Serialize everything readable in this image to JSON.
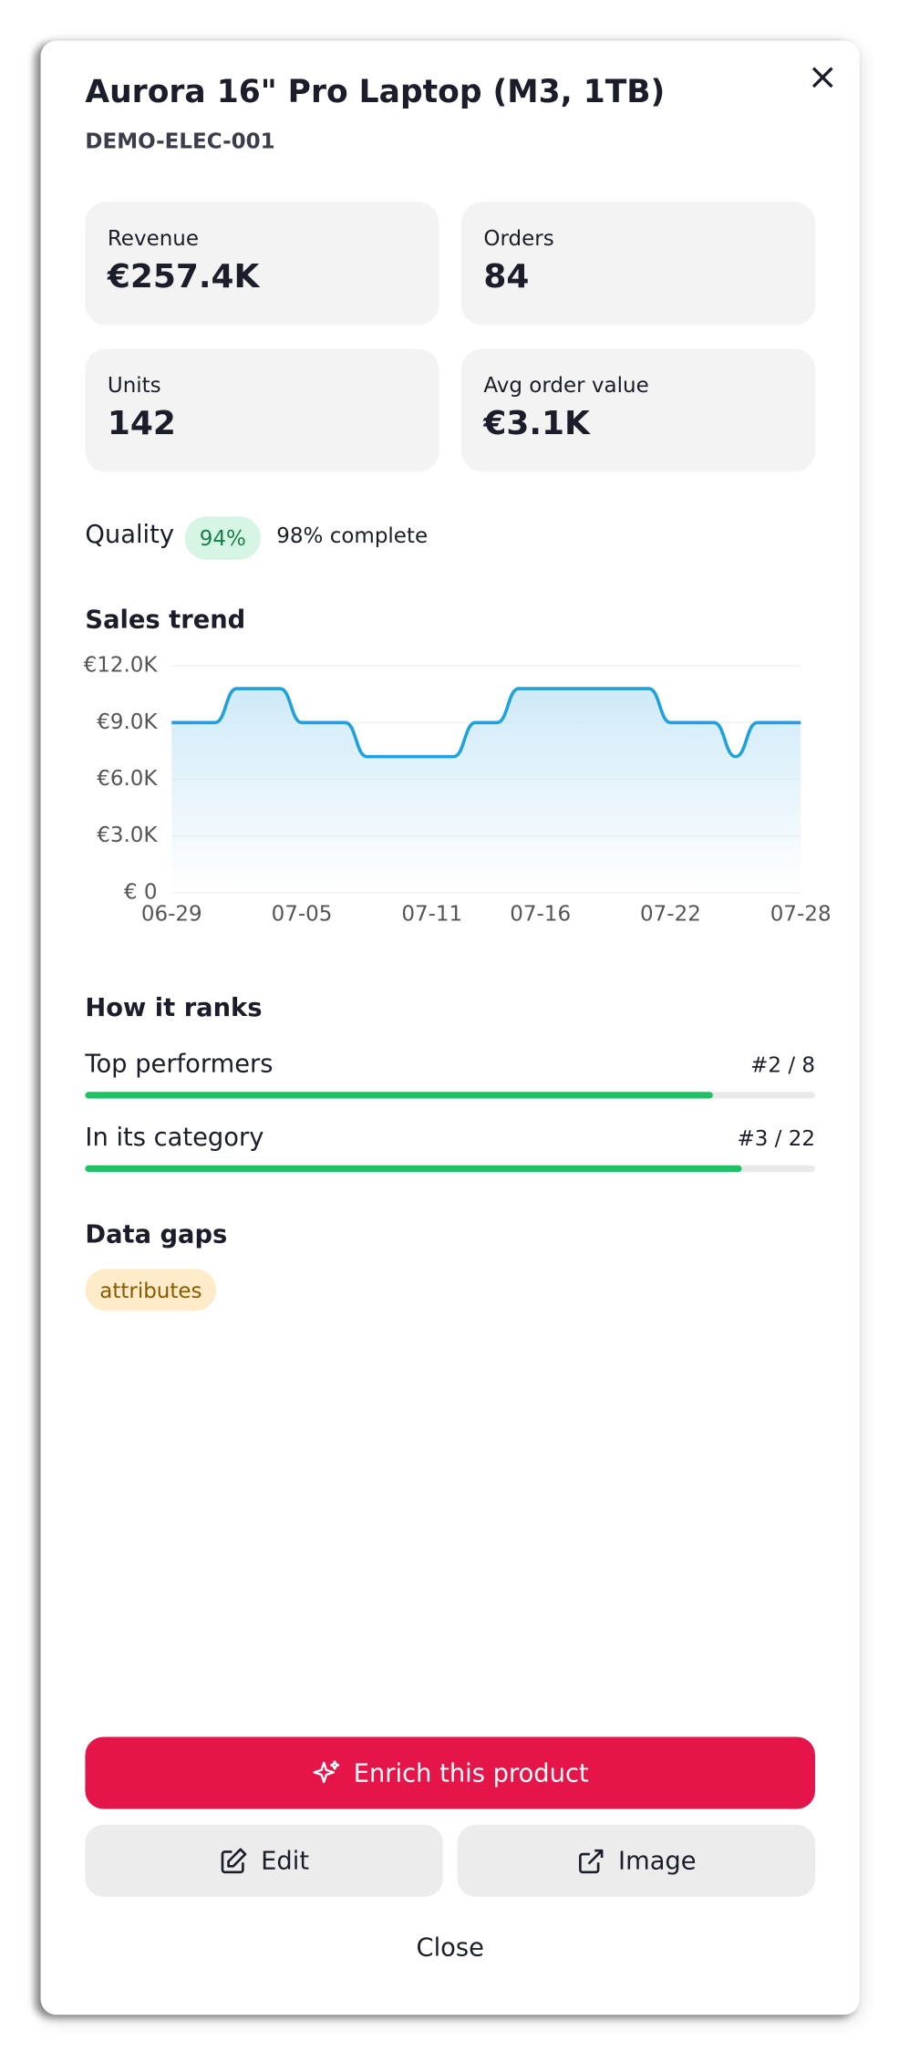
{
  "header": {
    "title": "Aurora 16\" Pro Laptop (M3, 1TB)",
    "sku": "DEMO-ELEC-001",
    "close_icon": "×"
  },
  "metrics": [
    {
      "label": "Revenue",
      "value": "€257.4K"
    },
    {
      "label": "Orders",
      "value": "84"
    },
    {
      "label": "Units",
      "value": "142"
    },
    {
      "label": "Avg order value",
      "value": "€3.1K"
    }
  ],
  "quality": {
    "label": "Quality",
    "badge": "94%",
    "complete": "98% complete"
  },
  "chart_data": {
    "type": "line",
    "title": "Sales trend",
    "categories": [
      "06-29",
      null,
      null,
      null,
      null,
      null,
      "07-05",
      null,
      null,
      null,
      null,
      null,
      "07-11",
      null,
      null,
      null,
      null,
      "07-16",
      null,
      null,
      null,
      null,
      null,
      "07-22",
      null,
      null,
      null,
      null,
      null,
      "07-28"
    ],
    "series": [
      {
        "name": "Sales",
        "color": "#1fa2dc",
        "values": [
          9000,
          9000,
          9000,
          10800,
          10800,
          10800,
          9000,
          9000,
          9000,
          7200,
          7200,
          7200,
          7200,
          7200,
          9000,
          9000,
          10800,
          10800,
          10800,
          10800,
          10800,
          10800,
          10800,
          9000,
          9000,
          9000,
          7200,
          9000,
          9000,
          9000
        ]
      }
    ],
    "ylim": [
      0,
      12000
    ],
    "yticks": [
      {
        "value": 0,
        "label": "€ 0"
      },
      {
        "value": 3000,
        "label": "€3.0K"
      },
      {
        "value": 6000,
        "label": "€6.0K"
      },
      {
        "value": 9000,
        "label": "€9.0K"
      },
      {
        "value": 12000,
        "label": "€12.0K"
      }
    ],
    "grid": true
  },
  "ranks": {
    "title": "How it ranks",
    "xlim": [
      0,
      100
    ],
    "items": [
      {
        "label": "Top performers",
        "rank": "#2 / 8",
        "value": 86
      },
      {
        "label": "In its category",
        "rank": "#3 / 22",
        "value": 90
      }
    ]
  },
  "gaps": {
    "title": "Data gaps",
    "tags": [
      "attributes"
    ]
  },
  "actions": {
    "enrich": "Enrich this product",
    "edit": "Edit",
    "image": "Image",
    "close": "Close"
  }
}
